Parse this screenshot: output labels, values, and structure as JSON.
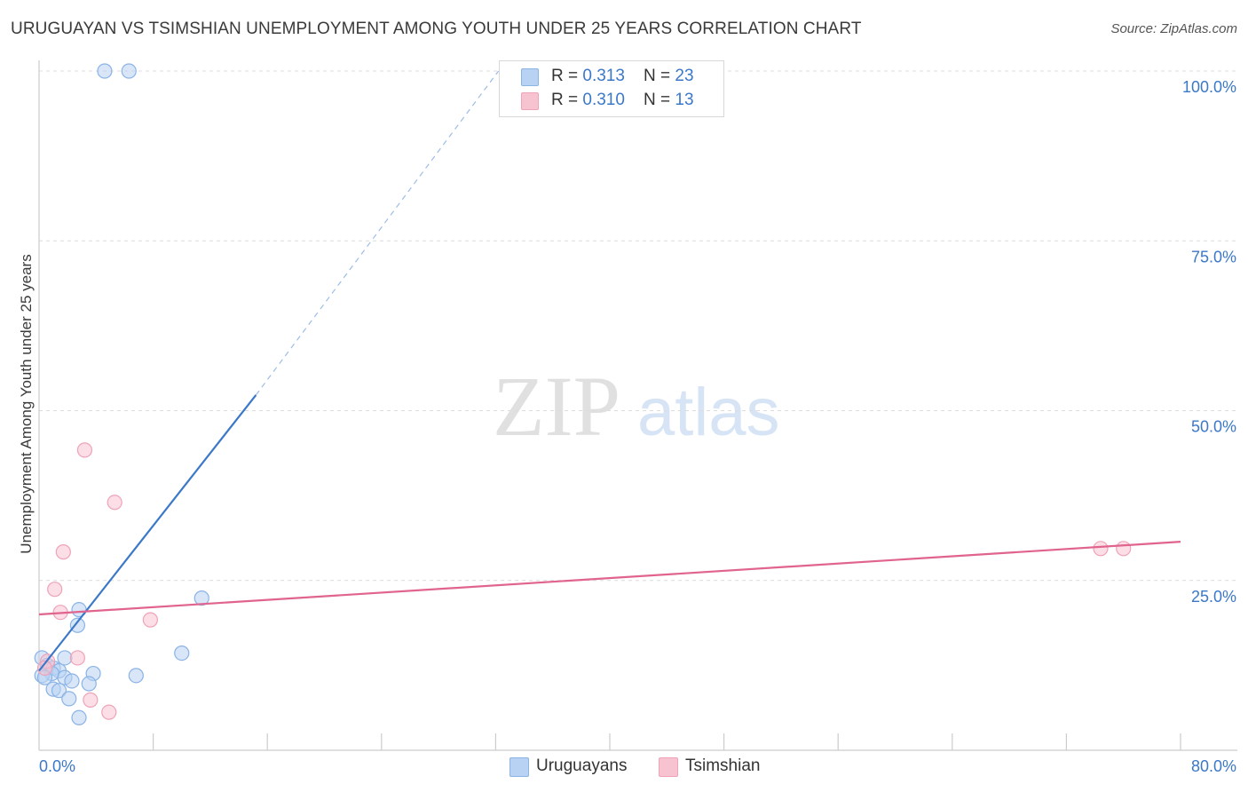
{
  "title": "URUGUAYAN VS TSIMSHIAN UNEMPLOYMENT AMONG YOUTH UNDER 25 YEARS CORRELATION CHART",
  "source": "Source: ZipAtlas.com",
  "watermark": {
    "zip": "ZIP",
    "atlas": "atlas"
  },
  "colors": {
    "blue_fill": "#b8d2f3",
    "blue_stroke": "#8ab3e6",
    "blue_line": "#3b78c8",
    "pink_fill": "#f7c3d1",
    "pink_stroke": "#efa3b8",
    "pink_line": "#e0648d",
    "grid": "#dcdcdc",
    "tick_label": "#3b78c8"
  },
  "legend": {
    "rows": [
      {
        "r_label": "R = ",
        "r_value": "0.313",
        "n_label": "N = ",
        "n_value": "23"
      },
      {
        "r_label": "R = ",
        "r_value": "0.310",
        "n_label": "N = ",
        "n_value": "13"
      }
    ]
  },
  "chart_data": {
    "type": "scatter",
    "title": "URUGUAYAN VS TSIMSHIAN UNEMPLOYMENT AMONG YOUTH UNDER 25 YEARS CORRELATION CHART",
    "xlabel": "",
    "ylabel": "Unemployment Among Youth under 25 years",
    "xlim": [
      0,
      80
    ],
    "ylim": [
      0,
      100
    ],
    "x_tick_labels": [
      "0.0%",
      "80.0%"
    ],
    "y_ticks": [
      25,
      50,
      75,
      100
    ],
    "y_tick_labels": [
      "25.0%",
      "50.0%",
      "75.0%",
      "100.0%"
    ],
    "grid": true,
    "series": [
      {
        "name": "Uruguayans",
        "color": "blue",
        "r": "0.313",
        "n": "23",
        "points": [
          [
            4.6,
            100.0
          ],
          [
            6.3,
            100.0
          ],
          [
            11.4,
            22.4
          ],
          [
            2.8,
            20.7
          ],
          [
            2.7,
            18.4
          ],
          [
            10.0,
            14.3
          ],
          [
            0.2,
            13.6
          ],
          [
            1.8,
            13.6
          ],
          [
            0.6,
            12.5
          ],
          [
            1.0,
            12.1
          ],
          [
            1.4,
            11.7
          ],
          [
            0.9,
            11.3
          ],
          [
            0.2,
            11.0
          ],
          [
            3.8,
            11.3
          ],
          [
            6.8,
            11.0
          ],
          [
            0.4,
            10.7
          ],
          [
            1.8,
            10.7
          ],
          [
            2.3,
            10.2
          ],
          [
            3.5,
            9.8
          ],
          [
            1.0,
            9.0
          ],
          [
            1.4,
            8.8
          ],
          [
            2.1,
            7.6
          ],
          [
            2.8,
            4.8
          ]
        ],
        "trend": {
          "x0": 0,
          "y0": 11.7,
          "x1": 15.2,
          "y1": 52.3,
          "dashed_to": {
            "x": 32.2,
            "y": 100.0
          }
        }
      },
      {
        "name": "Tsimshian",
        "color": "pink",
        "r": "0.310",
        "n": "13",
        "points": [
          [
            3.2,
            44.2
          ],
          [
            5.3,
            36.5
          ],
          [
            1.7,
            29.2
          ],
          [
            1.1,
            23.7
          ],
          [
            1.5,
            20.3
          ],
          [
            7.8,
            19.2
          ],
          [
            2.7,
            13.6
          ],
          [
            0.6,
            13.1
          ],
          [
            0.4,
            12.1
          ],
          [
            3.6,
            7.4
          ],
          [
            4.9,
            5.6
          ],
          [
            74.4,
            29.7
          ],
          [
            76.0,
            29.7
          ]
        ],
        "trend": {
          "x0": 0,
          "y0": 20.0,
          "x1": 80,
          "y1": 30.7
        }
      }
    ]
  }
}
